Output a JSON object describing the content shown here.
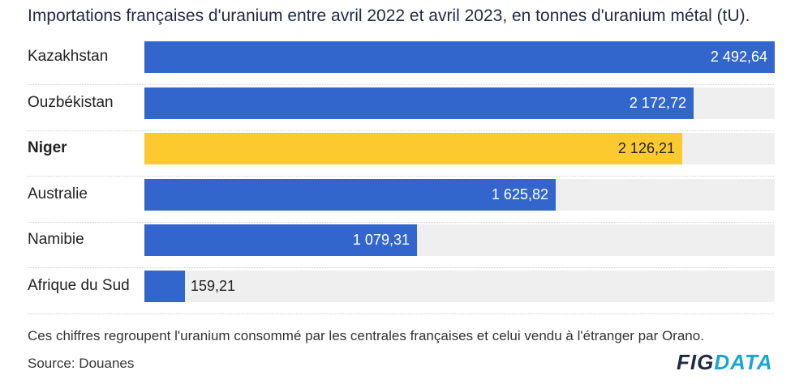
{
  "title": "Importations françaises d'uranium entre avril 2022 et avril 2023, en tonnes d'uranium métal (tU).",
  "note": "Ces chiffres regroupent l'uranium consommé par les centrales françaises et celui vendu à l'étranger par Orano.",
  "source": "Source: Douanes",
  "logo": {
    "part1": "FIG",
    "part2": "DATA"
  },
  "colors": {
    "bar": "#3366cc",
    "highlight": "#fcca2e",
    "track": "#efefef"
  },
  "chart_data": {
    "type": "bar",
    "orientation": "horizontal",
    "title": "Importations françaises d'uranium entre avril 2022 et avril 2023, en tonnes d'uranium métal (tU).",
    "xlim": [
      0,
      2492.64
    ],
    "highlighted": "Niger",
    "categories": [
      "Kazakhstan",
      "Ouzbékistan",
      "Niger",
      "Australie",
      "Namibie",
      "Afrique du Sud"
    ],
    "values": [
      2492.64,
      2172.72,
      2126.21,
      1625.82,
      1079.31,
      159.21
    ],
    "labels": [
      "2 492,64",
      "2 172,72",
      "2 126,21",
      "1 625,82",
      "1 079,31",
      "159,21"
    ]
  }
}
